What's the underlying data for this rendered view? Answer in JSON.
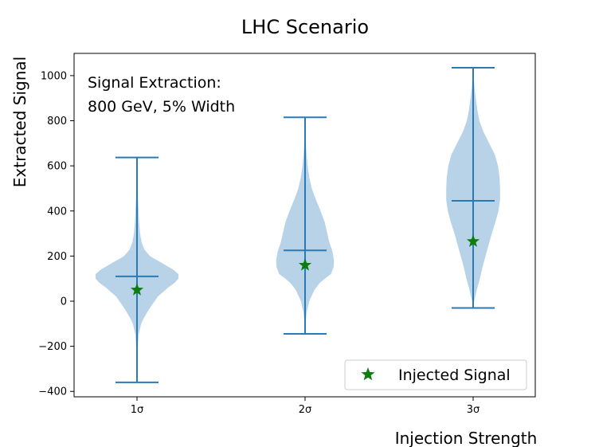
{
  "chart_data": {
    "type": "violin",
    "title": "LHC Scenario",
    "xlabel": "Injection Strength",
    "ylabel": "Extracted Signal",
    "ylim": [
      -420,
      1110
    ],
    "yticks": [
      -400,
      -200,
      0,
      200,
      400,
      600,
      800,
      1000
    ],
    "ytick_labels": [
      "−400",
      "−200",
      "0",
      "200",
      "400",
      "600",
      "800",
      "1000"
    ],
    "categories": [
      "1σ",
      "2σ",
      "3σ"
    ],
    "annotation": [
      "Signal Extraction:",
      "800 GeV, 5% Width"
    ],
    "legend": {
      "label": "Injected Signal",
      "location": "lower-right"
    },
    "colors": {
      "violin_fill": "#b8d3e8",
      "line": "#2a7ab6",
      "marker": "#0d7d0d",
      "axis": "#000000"
    },
    "series": [
      {
        "name": "1σ",
        "min": -360,
        "max": 637,
        "mean": 110,
        "injected": 50,
        "profile": [
          [
            -360,
            0
          ],
          [
            -250,
            0.5
          ],
          [
            -150,
            3
          ],
          [
            -100,
            8
          ],
          [
            -80,
            12
          ],
          [
            -60,
            17
          ],
          [
            -40,
            22
          ],
          [
            -20,
            28
          ],
          [
            0,
            34
          ],
          [
            20,
            40
          ],
          [
            40,
            50
          ],
          [
            60,
            60
          ],
          [
            80,
            72
          ],
          [
            100,
            80
          ],
          [
            120,
            80
          ],
          [
            140,
            70
          ],
          [
            160,
            55
          ],
          [
            180,
            40
          ],
          [
            200,
            25
          ],
          [
            230,
            14
          ],
          [
            260,
            9
          ],
          [
            300,
            6
          ],
          [
            350,
            4
          ],
          [
            400,
            3
          ],
          [
            450,
            2
          ],
          [
            500,
            1
          ],
          [
            550,
            0.5
          ],
          [
            637,
            0
          ]
        ]
      },
      {
        "name": "2σ",
        "min": -145,
        "max": 815,
        "mean": 225,
        "injected": 160,
        "profile": [
          [
            -145,
            0
          ],
          [
            -100,
            1
          ],
          [
            -50,
            3
          ],
          [
            0,
            8
          ],
          [
            50,
            18
          ],
          [
            80,
            28
          ],
          [
            100,
            38
          ],
          [
            120,
            50
          ],
          [
            150,
            55
          ],
          [
            180,
            56
          ],
          [
            220,
            53
          ],
          [
            260,
            47
          ],
          [
            300,
            43
          ],
          [
            350,
            38
          ],
          [
            400,
            30
          ],
          [
            450,
            21
          ],
          [
            500,
            13
          ],
          [
            550,
            8
          ],
          [
            600,
            5
          ],
          [
            650,
            3
          ],
          [
            700,
            1.5
          ],
          [
            815,
            0
          ]
        ]
      },
      {
        "name": "3σ",
        "min": -30,
        "max": 1035,
        "mean": 445,
        "injected": 265,
        "profile": [
          [
            -30,
            0
          ],
          [
            0,
            2
          ],
          [
            50,
            7
          ],
          [
            100,
            13
          ],
          [
            150,
            18
          ],
          [
            200,
            24
          ],
          [
            250,
            30
          ],
          [
            300,
            36
          ],
          [
            350,
            43
          ],
          [
            400,
            49
          ],
          [
            450,
            52
          ],
          [
            500,
            52
          ],
          [
            550,
            51
          ],
          [
            600,
            48
          ],
          [
            650,
            42
          ],
          [
            700,
            31
          ],
          [
            750,
            20
          ],
          [
            800,
            12
          ],
          [
            850,
            8
          ],
          [
            900,
            5
          ],
          [
            950,
            2.5
          ],
          [
            1035,
            0
          ]
        ]
      }
    ]
  }
}
